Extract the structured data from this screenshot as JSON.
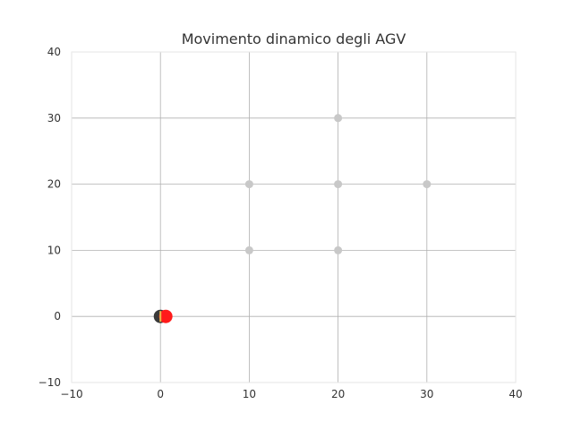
{
  "chart_data": {
    "type": "scatter",
    "title": "Movimento dinamico degli AGV",
    "xlabel": "",
    "ylabel": "",
    "xlim": [
      -10,
      40
    ],
    "ylim": [
      -10,
      40
    ],
    "xticks": [
      -10,
      0,
      10,
      20,
      30,
      40
    ],
    "yticks": [
      -10,
      0,
      10,
      20,
      30,
      40
    ],
    "xtick_labels": [
      "−10",
      "0",
      "10",
      "20",
      "30",
      "40"
    ],
    "ytick_labels": [
      "−10",
      "0",
      "10",
      "20",
      "30",
      "40"
    ],
    "grid": true,
    "legend": "none",
    "nodes": {
      "color": "#c8c8c8",
      "points": [
        {
          "x": 10,
          "y": 10
        },
        {
          "x": 20,
          "y": 10
        },
        {
          "x": 10,
          "y": 20
        },
        {
          "x": 20,
          "y": 20
        },
        {
          "x": 30,
          "y": 20
        },
        {
          "x": 20,
          "y": 30
        }
      ]
    },
    "agvs": [
      {
        "x": 0,
        "y": 0,
        "color": "#3a3a3a"
      },
      {
        "x": 0.6,
        "y": 0,
        "color": "#ff1a1a"
      }
    ],
    "agv_marker": {
      "x": 0,
      "y": 0,
      "color": "#e8b84a"
    }
  }
}
